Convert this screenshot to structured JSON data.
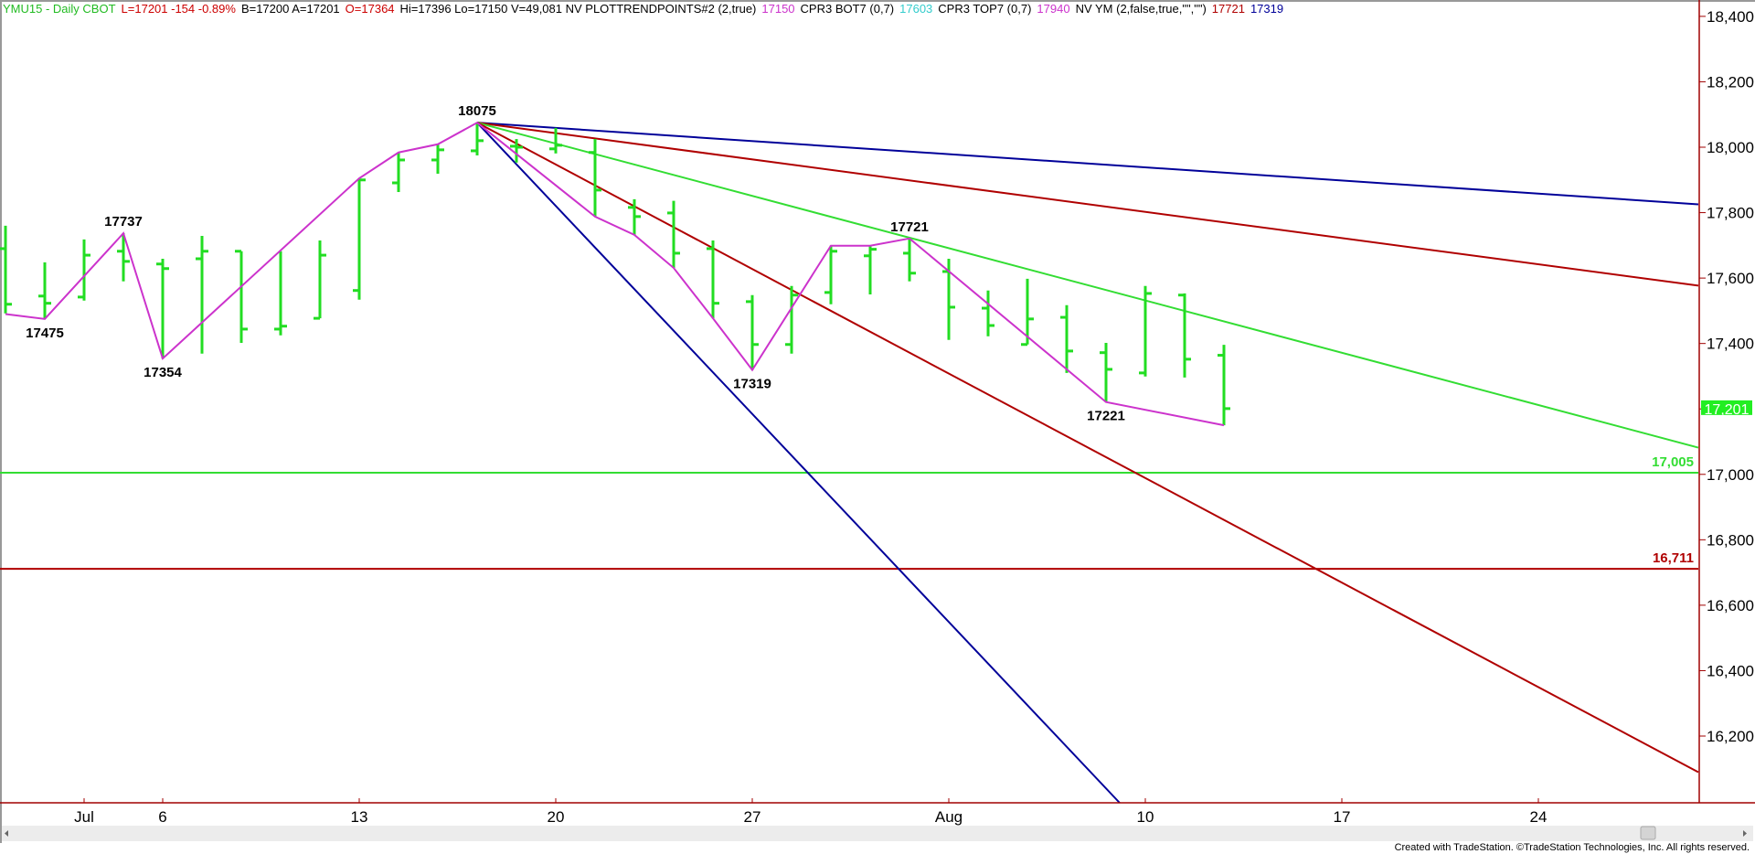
{
  "header": {
    "symbol": "YMU15 - Daily  CBOT",
    "last": "L=17201  -154  -0.89%",
    "bid_ask": "B=17200  A=17201",
    "open": "O=17364",
    "stats": "Hi=17396  Lo=17150  V=49,081  NV  PLOTTRENDPOINTS#2 (2,true)",
    "ind1_value": "17150",
    "ind2_name": "CPR3 BOT7 (0,7)",
    "ind2_value": "17603",
    "ind3_name": "CPR3 TOP7 (0,7)",
    "ind3_value": "17940",
    "ind4_name": "NV YM (2,false,true,\"\",\"\")",
    "ind4_value1": "17721",
    "ind4_value2": "17319"
  },
  "colors": {
    "bars": "#22dd22",
    "swing_line": "#cc33cc",
    "blue_line": "#000099",
    "red_line": "#b00000",
    "green_line": "#33dd33",
    "header_green": "#22bb22",
    "header_red": "#cc0000",
    "cyan": "#33cccc",
    "axis": "#a00000"
  },
  "chart_data": {
    "type": "ohlc-bar",
    "ylim": [
      15996,
      18450
    ],
    "y_ticks": [
      "18,400",
      "18,200",
      "18,000",
      "17,800",
      "17,600",
      "17,400",
      "17,200",
      "17,000",
      "16,800",
      "16,600",
      "16,400",
      "16,200"
    ],
    "x_ticks": [
      {
        "date": "Jul 1",
        "label": "Jul"
      },
      {
        "date": "Jul 6",
        "label": "6"
      },
      {
        "date": "Jul 13",
        "label": "13"
      },
      {
        "date": "Jul 20",
        "label": "20"
      },
      {
        "date": "Jul 27",
        "label": "27"
      },
      {
        "date": "Aug 3",
        "label": "Aug"
      },
      {
        "date": "Aug 10",
        "label": "10"
      },
      {
        "date": "Aug 17",
        "label": "17"
      },
      {
        "date": "Aug 24",
        "label": "24"
      }
    ],
    "last_price_label": "17,201",
    "bars": [
      {
        "date": "Jun 29",
        "open": 17690,
        "high": 17760,
        "low": 17492,
        "close": 17520
      },
      {
        "date": "Jun 30",
        "open": 17545,
        "high": 17648,
        "low": 17475,
        "close": 17523
      },
      {
        "date": "Jul 1",
        "open": 17542,
        "high": 17718,
        "low": 17531,
        "close": 17670
      },
      {
        "date": "Jul 2",
        "open": 17682,
        "high": 17737,
        "low": 17590,
        "close": 17651
      },
      {
        "date": "Jul 6",
        "open": 17643,
        "high": 17659,
        "low": 17354,
        "close": 17629
      },
      {
        "date": "Jul 7",
        "open": 17659,
        "high": 17729,
        "low": 17369,
        "close": 17682
      },
      {
        "date": "Jul 8",
        "open": 17682,
        "high": 17682,
        "low": 17402,
        "close": 17444
      },
      {
        "date": "Jul 9",
        "open": 17444,
        "high": 17682,
        "low": 17425,
        "close": 17453
      },
      {
        "date": "Jul 10",
        "open": 17477,
        "high": 17715,
        "low": 17477,
        "close": 17670
      },
      {
        "date": "Jul 13",
        "open": 17562,
        "high": 17905,
        "low": 17534,
        "close": 17900
      },
      {
        "date": "Jul 14",
        "open": 17891,
        "high": 17984,
        "low": 17863,
        "close": 17961
      },
      {
        "date": "Jul 15",
        "open": 17961,
        "high": 18009,
        "low": 17919,
        "close": 17992
      },
      {
        "date": "Jul 16",
        "open": 17989,
        "high": 18075,
        "low": 17975,
        "close": 18020
      },
      {
        "date": "Jul 17",
        "open": 18003,
        "high": 18025,
        "low": 17953,
        "close": 18000
      },
      {
        "date": "Jul 20",
        "open": 17995,
        "high": 18059,
        "low": 17981,
        "close": 18006
      },
      {
        "date": "Jul 21",
        "open": 17984,
        "high": 18025,
        "low": 17788,
        "close": 17869
      },
      {
        "date": "Jul 22",
        "open": 17816,
        "high": 17841,
        "low": 17732,
        "close": 17788
      },
      {
        "date": "Jul 23",
        "open": 17799,
        "high": 17836,
        "low": 17631,
        "close": 17676
      },
      {
        "date": "Jul 24",
        "open": 17690,
        "high": 17715,
        "low": 17477,
        "close": 17523
      },
      {
        "date": "Jul 27",
        "open": 17528,
        "high": 17548,
        "low": 17319,
        "close": 17397
      },
      {
        "date": "Jul 28",
        "open": 17397,
        "high": 17576,
        "low": 17369,
        "close": 17548
      },
      {
        "date": "Jul 29",
        "open": 17556,
        "high": 17699,
        "low": 17520,
        "close": 17682
      },
      {
        "date": "Jul 30",
        "open": 17668,
        "high": 17699,
        "low": 17550,
        "close": 17688
      },
      {
        "date": "Jul 31",
        "open": 17676,
        "high": 17721,
        "low": 17590,
        "close": 17615
      },
      {
        "date": "Aug 3",
        "open": 17620,
        "high": 17659,
        "low": 17411,
        "close": 17511
      },
      {
        "date": "Aug 4",
        "open": 17508,
        "high": 17562,
        "low": 17422,
        "close": 17455
      },
      {
        "date": "Aug 5",
        "open": 17397,
        "high": 17598,
        "low": 17397,
        "close": 17475
      },
      {
        "date": "Aug 6",
        "open": 17480,
        "high": 17517,
        "low": 17310,
        "close": 17377
      },
      {
        "date": "Aug 7",
        "open": 17372,
        "high": 17402,
        "low": 17221,
        "close": 17321
      },
      {
        "date": "Aug 10",
        "open": 17310,
        "high": 17576,
        "low": 17299,
        "close": 17553
      },
      {
        "date": "Aug 11",
        "open": 17548,
        "high": 17553,
        "low": 17296,
        "close": 17352
      },
      {
        "date": "Aug 12",
        "open": 17364,
        "high": 17396,
        "low": 17150,
        "close": 17201
      }
    ],
    "swing_line": [
      {
        "date": "Jun 29",
        "price": 17490
      },
      {
        "date": "Jun 30",
        "price": 17475
      },
      {
        "date": "Jul 2",
        "price": 17737
      },
      {
        "date": "Jul 6",
        "price": 17354
      },
      {
        "date": "Jul 13",
        "price": 17905
      },
      {
        "date": "Jul 14",
        "price": 17984
      },
      {
        "date": "Jul 15",
        "price": 18009
      },
      {
        "date": "Jul 16",
        "price": 18075
      },
      {
        "date": "Jul 21",
        "price": 17788
      },
      {
        "date": "Jul 22",
        "price": 17732
      },
      {
        "date": "Jul 23",
        "price": 17631
      },
      {
        "date": "Jul 24",
        "price": 17477
      },
      {
        "date": "Jul 27",
        "price": 17319
      },
      {
        "date": "Jul 29",
        "price": 17699
      },
      {
        "date": "Jul 30",
        "price": 17699
      },
      {
        "date": "Jul 31",
        "price": 17721
      },
      {
        "date": "Aug 7",
        "price": 17221
      },
      {
        "date": "Aug 12",
        "price": 17150
      }
    ],
    "pivot_labels": [
      {
        "date": "Jun 30",
        "price": 17475,
        "text": "17475",
        "pos": "below"
      },
      {
        "date": "Jul 2",
        "price": 17737,
        "text": "17737",
        "pos": "above"
      },
      {
        "date": "Jul 6",
        "price": 17354,
        "text": "17354",
        "pos": "below"
      },
      {
        "date": "Jul 16",
        "price": 18075,
        "text": "18075",
        "pos": "above"
      },
      {
        "date": "Jul 27",
        "price": 17319,
        "text": "17319",
        "pos": "below"
      },
      {
        "date": "Jul 31",
        "price": 17721,
        "text": "17721",
        "pos": "above"
      },
      {
        "date": "Aug 7",
        "price": 17221,
        "text": "17221",
        "pos": "below"
      }
    ],
    "trendlines": [
      {
        "color": "blue_line",
        "start": {
          "date": "Jul 16",
          "price": 18075
        },
        "end": {
          "date": "Aug 28",
          "price": 17826
        }
      },
      {
        "color": "red_line",
        "start": {
          "date": "Jul 16",
          "price": 18075
        },
        "end": {
          "date": "Aug 28",
          "price": 17578
        }
      },
      {
        "color": "green_line",
        "start": {
          "date": "Jul 16",
          "price": 18075
        },
        "end": {
          "date": "Aug 28",
          "price": 17084
        }
      },
      {
        "color": "red_line",
        "start": {
          "date": "Jul 16",
          "price": 18075
        },
        "end": {
          "date": "Aug 28",
          "price": 16094
        }
      },
      {
        "color": "blue_line",
        "start": {
          "date": "Jul 16",
          "price": 18075
        },
        "end": {
          "date": "Aug 7",
          "price": 16040
        }
      }
    ],
    "horizontal_lines": [
      {
        "price": 17005,
        "label": "17,005",
        "color": "green_line"
      },
      {
        "price": 16711,
        "label": "16,711",
        "color": "red_line"
      }
    ]
  },
  "footer": "Created with TradeStation. ©TradeStation Technologies, Inc. All rights reserved."
}
